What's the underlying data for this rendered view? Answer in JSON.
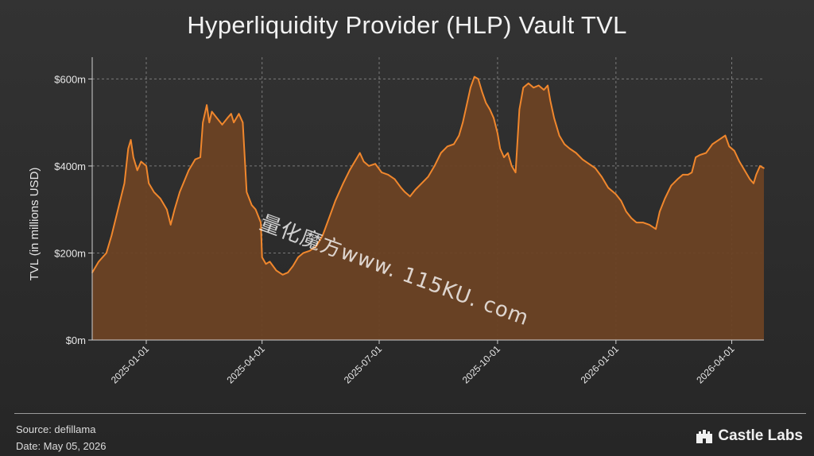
{
  "chart_data": {
    "type": "area",
    "title": "Hyperliquidity Provider (HLP) Vault TVL",
    "ylabel": "TVL (in millions USD)",
    "xlabel": "",
    "ylim": [
      0,
      650
    ],
    "xlim": [
      "2024-11-20",
      "2026-04-26"
    ],
    "yticks": [
      {
        "value": 0,
        "label": "$0m"
      },
      {
        "value": 200,
        "label": "$200m"
      },
      {
        "value": 400,
        "label": "$400m"
      },
      {
        "value": 600,
        "label": "$600m"
      }
    ],
    "xticks": [
      {
        "value": "2025-01-01",
        "label": "2025-01-01"
      },
      {
        "value": "2025-04-01",
        "label": "2025-04-01"
      },
      {
        "value": "2025-07-01",
        "label": "2025-07-01"
      },
      {
        "value": "2025-10-01",
        "label": "2025-10-01"
      },
      {
        "value": "2026-01-01",
        "label": "2026-01-01"
      },
      {
        "value": "2026-04-01",
        "label": "2026-04-01"
      }
    ],
    "grid": true,
    "line_color": "#f0872d",
    "fill_color": "#6b4224",
    "series": [
      {
        "points": [
          [
            "2024-11-20",
            155
          ],
          [
            "2024-11-25",
            180
          ],
          [
            "2024-12-01",
            200
          ],
          [
            "2024-12-05",
            240
          ],
          [
            "2024-12-10",
            300
          ],
          [
            "2024-12-15",
            360
          ],
          [
            "2024-12-18",
            440
          ],
          [
            "2024-12-20",
            460
          ],
          [
            "2024-12-22",
            420
          ],
          [
            "2024-12-25",
            390
          ],
          [
            "2024-12-28",
            410
          ],
          [
            "2025-01-01",
            400
          ],
          [
            "2025-01-03",
            360
          ],
          [
            "2025-01-07",
            340
          ],
          [
            "2025-01-12",
            325
          ],
          [
            "2025-01-17",
            300
          ],
          [
            "2025-01-20",
            265
          ],
          [
            "2025-01-23",
            300
          ],
          [
            "2025-01-27",
            340
          ],
          [
            "2025-02-03",
            390
          ],
          [
            "2025-02-08",
            415
          ],
          [
            "2025-02-12",
            420
          ],
          [
            "2025-02-14",
            500
          ],
          [
            "2025-02-17",
            540
          ],
          [
            "2025-02-19,",
            500
          ],
          [
            "2025-02-21",
            525
          ],
          [
            "2025-02-25",
            510
          ],
          [
            "2025-03-01",
            495
          ],
          [
            "2025-03-05",
            510
          ],
          [
            "2025-03-08",
            520
          ],
          [
            "2025-03-10",
            500
          ],
          [
            "2025-03-14",
            520
          ],
          [
            "2025-03-17",
            500
          ],
          [
            "2025-03-20",
            340
          ],
          [
            "2025-03-24",
            310
          ],
          [
            "2025-03-27",
            300
          ],
          [
            "2025-03-31",
            270
          ],
          [
            "2025-04-01",
            190
          ],
          [
            "2025-04-04",
            175
          ],
          [
            "2025-04-07",
            180
          ],
          [
            "2025-04-12",
            160
          ],
          [
            "2025-04-17",
            150
          ],
          [
            "2025-04-21",
            155
          ],
          [
            "2025-04-25",
            170
          ],
          [
            "2025-04-29",
            190
          ],
          [
            "2025-05-03",
            200
          ],
          [
            "2025-05-08",
            205
          ],
          [
            "2025-05-13",
            215
          ],
          [
            "2025-05-18",
            240
          ],
          [
            "2025-05-23",
            280
          ],
          [
            "2025-05-28",
            320
          ],
          [
            "2025-06-03",
            360
          ],
          [
            "2025-06-08",
            390
          ],
          [
            "2025-06-11",
            405
          ],
          [
            "2025-06-14",
            420
          ],
          [
            "2025-06-16",
            430
          ],
          [
            "2025-06-19",
            410
          ],
          [
            "2025-06-23",
            400
          ],
          [
            "2025-06-28",
            405
          ],
          [
            "2025-07-03",
            385
          ],
          [
            "2025-07-08",
            380
          ],
          [
            "2025-07-13",
            370
          ],
          [
            "2025-07-18",
            350
          ],
          [
            "2025-07-21",
            340
          ],
          [
            "2025-07-25",
            330
          ],
          [
            "2025-07-29",
            345
          ],
          [
            "2025-08-03",
            360
          ],
          [
            "2025-08-08",
            375
          ],
          [
            "2025-08-13",
            400
          ],
          [
            "2025-08-18",
            430
          ],
          [
            "2025-08-23",
            445
          ],
          [
            "2025-08-28",
            450
          ],
          [
            "2025-09-01",
            470
          ],
          [
            "2025-09-04",
            500
          ],
          [
            "2025-09-07",
            540
          ],
          [
            "2025-09-10",
            580
          ],
          [
            "2025-09-13",
            605
          ],
          [
            "2025-09-16",
            600
          ],
          [
            "2025-09-19",
            570
          ],
          [
            "2025-09-22",
            545
          ],
          [
            "2025-09-25",
            530
          ],
          [
            "2025-09-28",
            510
          ],
          [
            "2025-10-01",
            475
          ],
          [
            "2025-10-03",
            440
          ],
          [
            "2025-10-06",
            420
          ],
          [
            "2025-10-09",
            430
          ],
          [
            "2025-10-12",
            400
          ],
          [
            "2025-10-15",
            385
          ],
          [
            "2025-10-18",
            530
          ],
          [
            "2025-10-21",
            580
          ],
          [
            "2025-10-25",
            590
          ],
          [
            "2025-10-29",
            580
          ],
          [
            "2025-11-02",
            585
          ],
          [
            "2025-11-06",
            575
          ],
          [
            "2025-11-09",
            585
          ],
          [
            "2025-11-11",
            550
          ],
          [
            "2025-11-14",
            510
          ],
          [
            "2025-11-18",
            470
          ],
          [
            "2025-11-22",
            450
          ],
          [
            "2025-11-26",
            440
          ],
          [
            "2025-12-01",
            430
          ],
          [
            "2025-12-06",
            415
          ],
          [
            "2025-12-11",
            405
          ],
          [
            "2025-12-16",
            395
          ],
          [
            "2025-12-21",
            375
          ],
          [
            "2025-12-26",
            350
          ],
          [
            "2026-01-01",
            335
          ],
          [
            "2026-01-05",
            320
          ],
          [
            "2026-01-09",
            295
          ],
          [
            "2026-01-13",
            280
          ],
          [
            "2026-01-17",
            270
          ],
          [
            "2026-01-22",
            270
          ],
          [
            "2026-01-27",
            265
          ],
          [
            "2026-02-01",
            255
          ],
          [
            "2026-02-04",
            295
          ],
          [
            "2026-02-08",
            325
          ],
          [
            "2026-02-13",
            355
          ],
          [
            "2026-02-18",
            370
          ],
          [
            "2026-02-22",
            380
          ],
          [
            "2026-02-26",
            380
          ],
          [
            "2026-03-01",
            385
          ],
          [
            "2026-03-04",
            420
          ],
          [
            "2026-03-07",
            425
          ],
          [
            "2026-03-12",
            430
          ],
          [
            "2026-03-17",
            450
          ],
          [
            "2026-03-22",
            460
          ],
          [
            "2026-03-27",
            470
          ],
          [
            "2026-03-30",
            445
          ],
          [
            "2026-04-03",
            435
          ],
          [
            "2026-04-07",
            410
          ],
          [
            "2026-04-11",
            390
          ],
          [
            "2026-04-15",
            370
          ],
          [
            "2026-04-18",
            360
          ],
          [
            "2026-04-20",
            380
          ],
          [
            "2026-04-23",
            400
          ],
          [
            "2026-04-26",
            395
          ]
        ]
      }
    ]
  },
  "footer": {
    "source": "Source: defillama",
    "date": "Date: May 05, 2026",
    "brand": "Castle Labs",
    "logo": "castle-icon"
  },
  "watermark": "量化魔方www. 115KU. com"
}
